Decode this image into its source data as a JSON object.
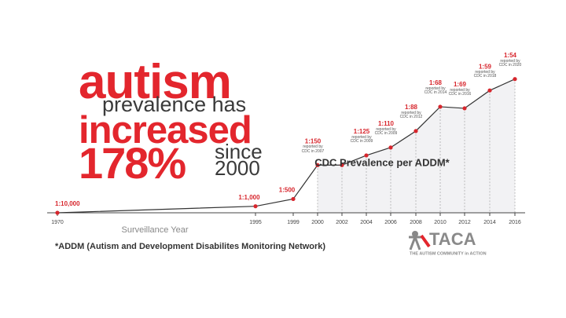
{
  "headline": {
    "line1": "autism",
    "line2": "prevalence has",
    "line3": "increased",
    "percent": "178%",
    "since": "since",
    "year": "2000"
  },
  "chart_data": {
    "type": "line",
    "x": [
      1970,
      1995,
      1999,
      2000,
      2002,
      2004,
      2006,
      2008,
      2010,
      2012,
      2014,
      2016
    ],
    "values": [
      10000,
      1000,
      500,
      150,
      150,
      125,
      110,
      88,
      68,
      69,
      59,
      54
    ],
    "value_labels": [
      "1:10,000",
      "1:1,000",
      "1:500",
      "1:150",
      null,
      "1:125",
      "1:110",
      "1:88",
      "1:68",
      "1:69",
      "1:59",
      "1:54"
    ],
    "notes": [
      null,
      null,
      null,
      "reported by CDC in 2007",
      null,
      "reported by CDC in 2009",
      "reported by CDC in 2009",
      "reported by CDC in 2012",
      "reported by CDC in 2014",
      "reported by CDC in 2016",
      "reported by CDC in 2018",
      "reported by CDC in 2020"
    ],
    "color": "#333333",
    "marker_color": "#d7262d",
    "xlim": [
      1970,
      2016
    ],
    "xticks": [
      1970,
      1995,
      1999,
      2000,
      2002,
      2004,
      2006,
      2008,
      2010,
      2012,
      2014,
      2016
    ],
    "xlabel": "Surveillance Year",
    "ylim": [
      10000,
      50
    ],
    "scale": "reciprocal",
    "annotation": "CDC Prevalence per ADDM*"
  },
  "footnote": "*ADDM (Autism and Development Disabilites Monitoring Network)",
  "logo": {
    "name": "TACA",
    "tagline": "THE AUTISM COMMUNITY in ACTION"
  }
}
